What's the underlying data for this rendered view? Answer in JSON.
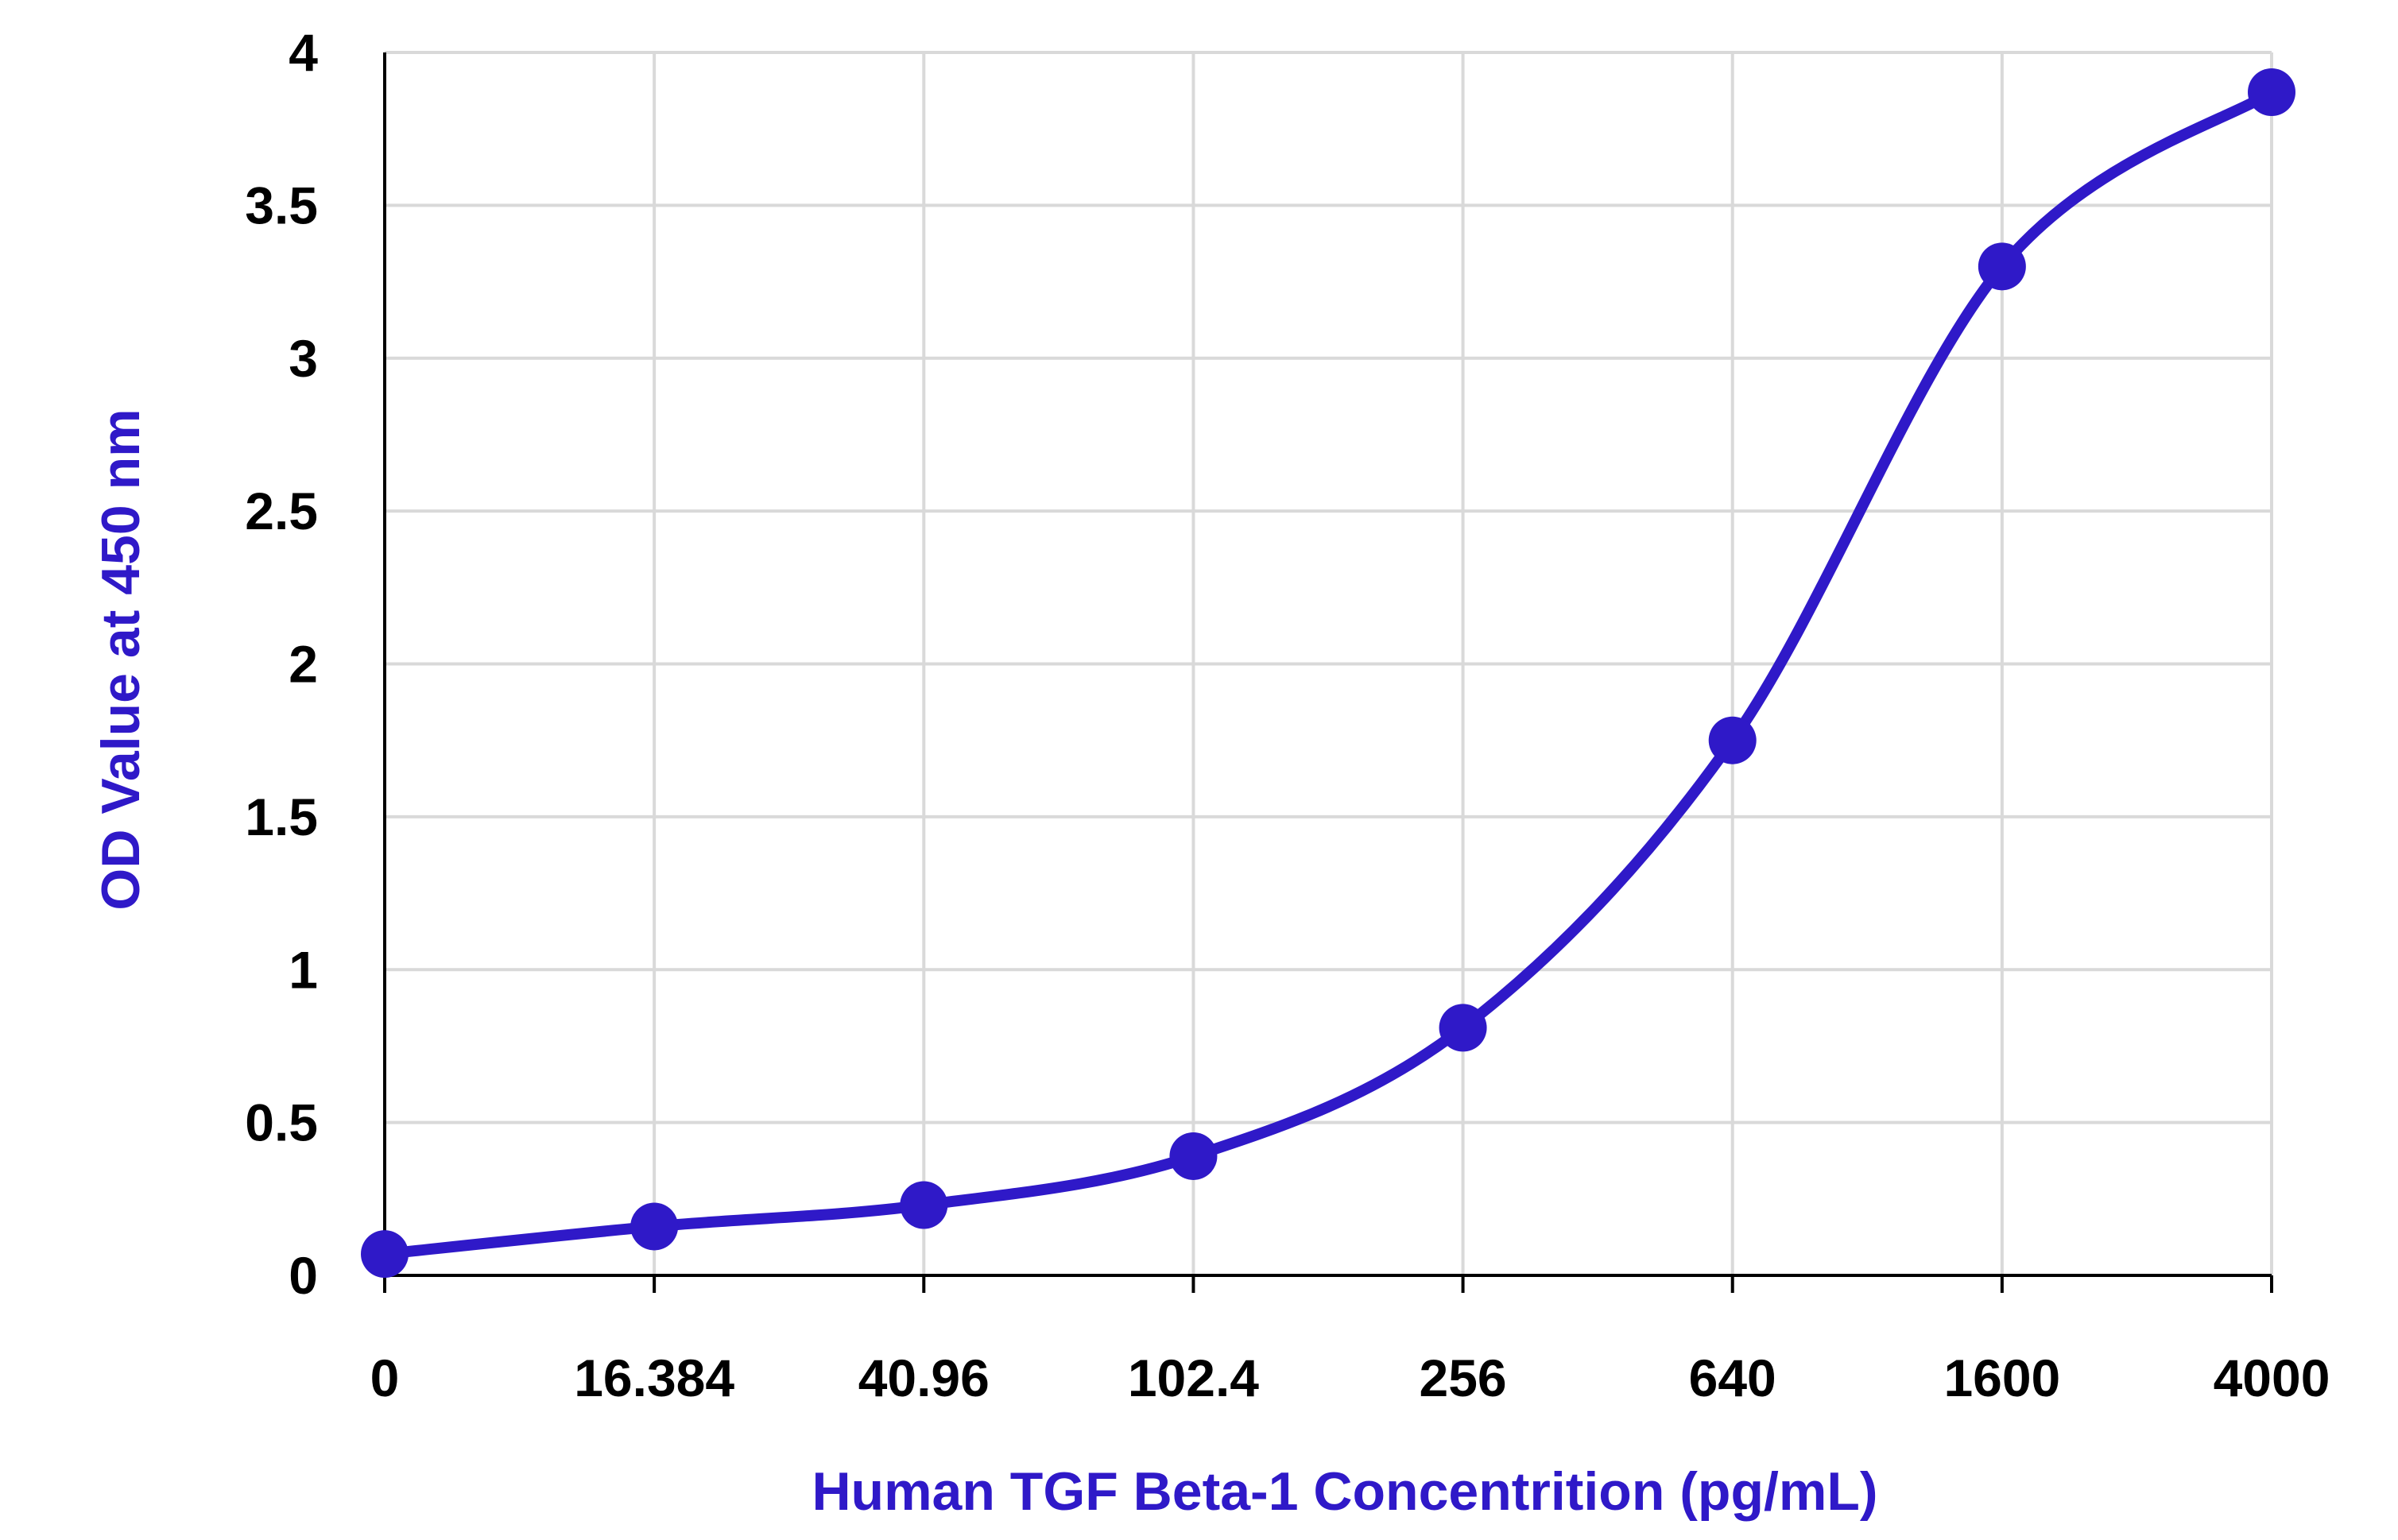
{
  "chart_data": {
    "type": "line",
    "title": "",
    "xlabel": "Human TGF Beta-1 Concentrition (pg/mL)",
    "ylabel": "OD Value at 450 nm",
    "x_scale": "categorical (log-spaced concentrations)",
    "categories": [
      "0",
      "16.384",
      "40.96",
      "102.4",
      "256",
      "640",
      "1600",
      "4000"
    ],
    "x": [
      0,
      16.384,
      40.96,
      102.4,
      256,
      640,
      1600,
      4000
    ],
    "y_ticks": [
      "0",
      "0.5",
      "1",
      "1.5",
      "2",
      "2.5",
      "3",
      "3.5",
      "4"
    ],
    "ylim": [
      0,
      4
    ],
    "grid": true,
    "legend": "none",
    "smoothed_line": true,
    "series": [
      {
        "values": [
          0.07,
          0.16,
          0.23,
          0.39,
          0.81,
          1.75,
          3.3,
          3.87
        ],
        "color": "#2f19c8"
      }
    ]
  },
  "colors": {
    "series": "#2f19c8",
    "axis_title": "#2f19c8",
    "tick_label": "#000000",
    "grid": "#d9d9d9",
    "axis": "#000000"
  }
}
